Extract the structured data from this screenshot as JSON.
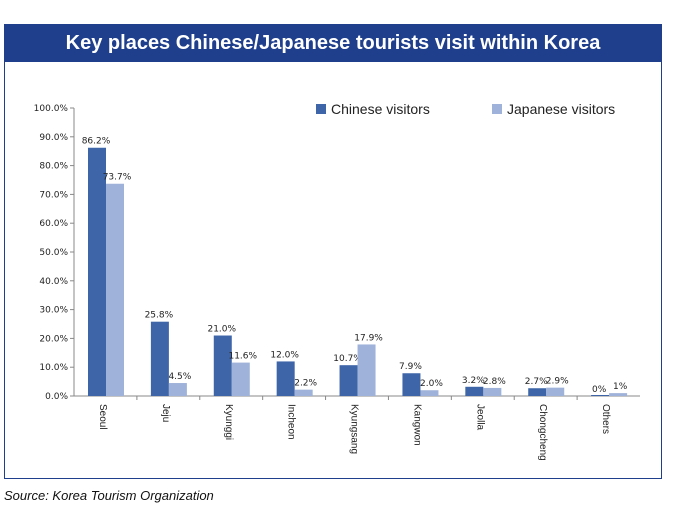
{
  "chart_data": {
    "type": "bar",
    "title": "Key places Chinese/Japanese tourists visit within Korea",
    "categories": [
      "Seoul",
      "Jeju",
      "Kyunggi",
      "Incheon",
      "Kyungsang",
      "Kangwon",
      "Jeolla",
      "Chongcheng",
      "Others"
    ],
    "series": [
      {
        "name": "Chinese visitors",
        "values": [
          86.2,
          25.8,
          21.0,
          12.0,
          10.7,
          7.9,
          3.2,
          2.7,
          0
        ],
        "labels": [
          "86.2%",
          "25.8%",
          "21.0%",
          "12.0%",
          "10.7%",
          "7.9%",
          "3.2%",
          "2.7%",
          "0%"
        ],
        "color": "#3e65a8"
      },
      {
        "name": "Japanese visitors",
        "values": [
          73.7,
          4.5,
          11.6,
          2.2,
          17.9,
          2.0,
          2.8,
          2.9,
          1
        ],
        "labels": [
          "73.7%",
          "4.5%",
          "11.6%",
          "2.2%",
          "17.9%",
          "2.0%",
          "2.8%",
          "2.9%",
          "1%"
        ],
        "color": "#9fb2d9"
      }
    ],
    "ylim": [
      0,
      100
    ],
    "yticks": [
      "0.0%",
      "10.0%",
      "20.0%",
      "30.0%",
      "40.0%",
      "50.0%",
      "60.0%",
      "70.0%",
      "80.0%",
      "90.0%",
      "100.0%"
    ],
    "legend_position": "top-right",
    "grid": false
  },
  "source": "Source: Korea Tourism Organization"
}
